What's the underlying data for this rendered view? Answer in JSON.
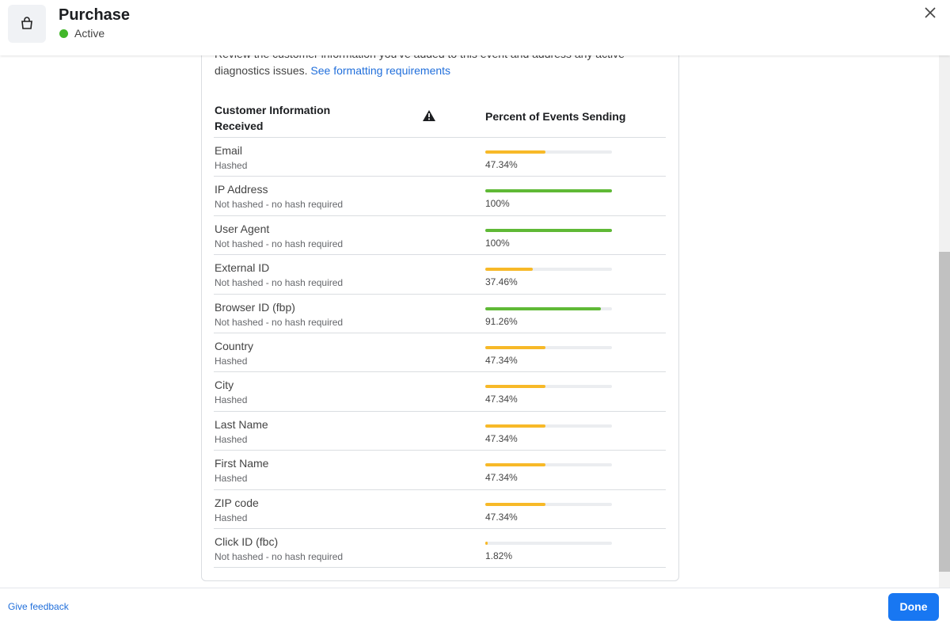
{
  "header": {
    "title": "Purchase",
    "status": "Active"
  },
  "intro": {
    "line1": "Review the customer information you've added to this event and address any active",
    "line2": "diagnostics issues.",
    "link": "See formatting requirements"
  },
  "table": {
    "headers": [
      "Customer Information Received",
      "Percent of Events Sending"
    ],
    "rows": [
      {
        "name": "Email",
        "hash": "Hashed",
        "percent": 47.34,
        "percent_label": "47.34%",
        "color": "#f7b928"
      },
      {
        "name": "IP Address",
        "hash": "Not hashed - no hash required",
        "percent": 100,
        "percent_label": "100%",
        "color": "#5fb936"
      },
      {
        "name": "User Agent",
        "hash": "Not hashed - no hash required",
        "percent": 100,
        "percent_label": "100%",
        "color": "#5fb936"
      },
      {
        "name": "External ID",
        "hash": "Not hashed - no hash required",
        "percent": 37.46,
        "percent_label": "37.46%",
        "color": "#f7b928"
      },
      {
        "name": "Browser ID (fbp)",
        "hash": "Not hashed - no hash required",
        "percent": 91.26,
        "percent_label": "91.26%",
        "color": "#5fb936"
      },
      {
        "name": "Country",
        "hash": "Hashed",
        "percent": 47.34,
        "percent_label": "47.34%",
        "color": "#f7b928"
      },
      {
        "name": "City",
        "hash": "Hashed",
        "percent": 47.34,
        "percent_label": "47.34%",
        "color": "#f7b928"
      },
      {
        "name": "Last Name",
        "hash": "Hashed",
        "percent": 47.34,
        "percent_label": "47.34%",
        "color": "#f7b928"
      },
      {
        "name": "First Name",
        "hash": "Hashed",
        "percent": 47.34,
        "percent_label": "47.34%",
        "color": "#f7b928"
      },
      {
        "name": "ZIP code",
        "hash": "Hashed",
        "percent": 47.34,
        "percent_label": "47.34%",
        "color": "#f7b928"
      },
      {
        "name": "Click ID (fbc)",
        "hash": "Not hashed - no hash required",
        "percent": 1.82,
        "percent_label": "1.82%",
        "color": "#f7b928"
      }
    ]
  },
  "footer": {
    "feedback": "Give feedback",
    "done": "Done"
  }
}
